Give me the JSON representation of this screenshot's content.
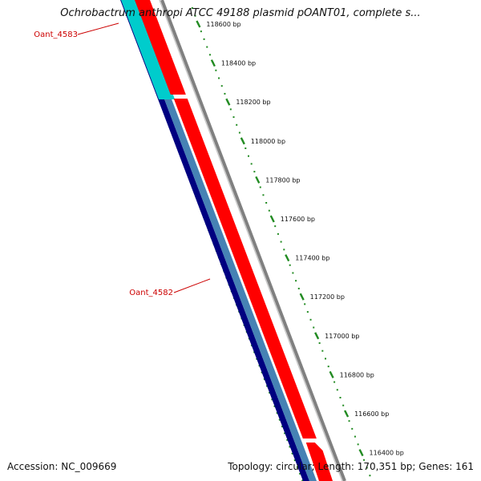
{
  "title": "Ochrobactrum anthropi ATCC 49188 plasmid pOANT01, complete s...",
  "footer": {
    "accession_label": "Accession:",
    "accession": "NC_009669",
    "topology_label": "Topology:",
    "topology": "circular;",
    "length_label": "Length:",
    "length": "170,351 bp;",
    "genes_label": "Genes:",
    "genes": "161"
  },
  "colors": {
    "forward_cds": "#ff0000",
    "forward_cds_alt": "#00cccc",
    "reverse_cds": "#000080",
    "reverse_cds_alt": "#4682b4",
    "backbone": "#808080",
    "ruler": "#228b22",
    "gene_label": "#cc0000"
  },
  "ruler_ticks": [
    {
      "label": "118600 bp"
    },
    {
      "label": "118400 bp"
    },
    {
      "label": "118200 bp"
    },
    {
      "label": "118000 bp"
    },
    {
      "label": "117800 bp"
    },
    {
      "label": "117600 bp"
    },
    {
      "label": "117400 bp"
    },
    {
      "label": "117200 bp"
    },
    {
      "label": "117000 bp"
    },
    {
      "label": "116800 bp"
    },
    {
      "label": "116600 bp"
    },
    {
      "label": "116400 bp"
    }
  ],
  "gene_labels": [
    {
      "text": "Oant_4583"
    },
    {
      "text": "Oant_4582"
    }
  ]
}
